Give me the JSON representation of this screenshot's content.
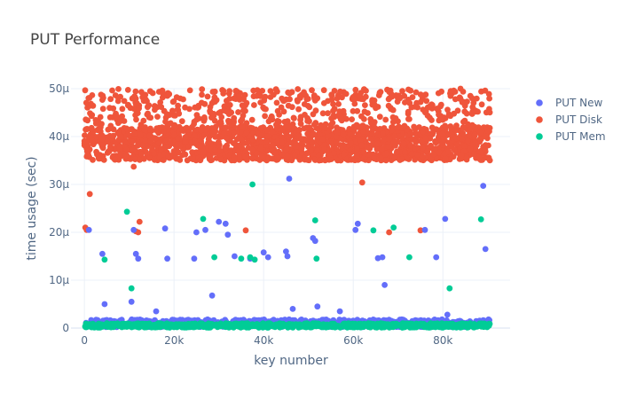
{
  "chart_data": {
    "type": "scatter",
    "title": "PUT Performance",
    "xlabel": "key number",
    "ylabel": "time usage (sec)",
    "xlim": [
      -3000,
      95000
    ],
    "ylim": [
      0,
      5e-05
    ],
    "grid": true,
    "legend_position": "top-right",
    "x_ticks": [
      {
        "value": 0,
        "label": "0"
      },
      {
        "value": 20000,
        "label": "20k"
      },
      {
        "value": 40000,
        "label": "40k"
      },
      {
        "value": 60000,
        "label": "60k"
      },
      {
        "value": 80000,
        "label": "80k"
      }
    ],
    "y_ticks": [
      {
        "value": 0,
        "label": "0"
      },
      {
        "value": 1e-05,
        "label": "10μ"
      },
      {
        "value": 2e-05,
        "label": "20μ"
      },
      {
        "value": 3e-05,
        "label": "30μ"
      },
      {
        "value": 4e-05,
        "label": "40μ"
      },
      {
        "value": 5e-05,
        "label": "50μ"
      }
    ],
    "series": [
      {
        "name": "PUT New",
        "color": "#636efa",
        "bulk": {
          "x_range": [
            0,
            90500
          ],
          "y_range": [
            2e-07,
            1.8e-06
          ],
          "count": 700
        },
        "points": [
          [
            1000,
            2.05e-05
          ],
          [
            4000,
            1.55e-05
          ],
          [
            4500,
            5e-06
          ],
          [
            10500,
            5.5e-06
          ],
          [
            11000,
            2.05e-05
          ],
          [
            11500,
            1.55e-05
          ],
          [
            12000,
            1.45e-05
          ],
          [
            16000,
            3.5e-06
          ],
          [
            18000,
            2.08e-05
          ],
          [
            18500,
            1.45e-05
          ],
          [
            24500,
            1.45e-05
          ],
          [
            25000,
            2e-05
          ],
          [
            27000,
            2.05e-05
          ],
          [
            28500,
            6.8e-06
          ],
          [
            30000,
            2.22e-05
          ],
          [
            31500,
            2.18e-05
          ],
          [
            32000,
            1.95e-05
          ],
          [
            33500,
            1.5e-05
          ],
          [
            37000,
            1.45e-05
          ],
          [
            40000,
            1.58e-05
          ],
          [
            41000,
            1.48e-05
          ],
          [
            45000,
            1.6e-05
          ],
          [
            45300,
            1.5e-05
          ],
          [
            45700,
            3.12e-05
          ],
          [
            46500,
            4e-06
          ],
          [
            51000,
            1.88e-05
          ],
          [
            51500,
            1.82e-05
          ],
          [
            52000,
            4.5e-06
          ],
          [
            57000,
            3.5e-06
          ],
          [
            60500,
            2.05e-05
          ],
          [
            61000,
            2.18e-05
          ],
          [
            65500,
            1.46e-05
          ],
          [
            66500,
            1.48e-05
          ],
          [
            67000,
            9e-06
          ],
          [
            76000,
            2.05e-05
          ],
          [
            78500,
            1.48e-05
          ],
          [
            80500,
            2.28e-05
          ],
          [
            81000,
            2.8e-06
          ],
          [
            89000,
            2.97e-05
          ],
          [
            89500,
            1.65e-05
          ]
        ]
      },
      {
        "name": "PUT Disk",
        "color": "#ef553b",
        "bulk": {
          "x_range": [
            0,
            90500
          ],
          "y_range": [
            3.5e-05,
            4.2e-05
          ],
          "count": 1600
        },
        "scatter": {
          "x_range": [
            0,
            90500
          ],
          "y_range": [
            4.2e-05,
            5e-05
          ],
          "count": 500
        },
        "points": [
          [
            200,
            2.1e-05
          ],
          [
            500,
            2.05e-05
          ],
          [
            1200,
            2.8e-05
          ],
          [
            11000,
            3.37e-05
          ],
          [
            11500,
            2.02e-05
          ],
          [
            12000,
            2e-05
          ],
          [
            12300,
            2.22e-05
          ],
          [
            36000,
            2.04e-05
          ],
          [
            62000,
            3.04e-05
          ],
          [
            68000,
            2e-05
          ],
          [
            75000,
            2.04e-05
          ]
        ]
      },
      {
        "name": "PUT Mem",
        "color": "#00cc96",
        "bulk": {
          "x_range": [
            0,
            90500
          ],
          "y_range": [
            1e-07,
            1e-06
          ],
          "count": 800
        },
        "points": [
          [
            4500,
            1.43e-05
          ],
          [
            9500,
            2.43e-05
          ],
          [
            10500,
            8.3e-06
          ],
          [
            26500,
            2.28e-05
          ],
          [
            29000,
            1.48e-05
          ],
          [
            35000,
            1.45e-05
          ],
          [
            37000,
            1.48e-05
          ],
          [
            37500,
            3e-05
          ],
          [
            38000,
            1.43e-05
          ],
          [
            51500,
            2.25e-05
          ],
          [
            51800,
            1.45e-05
          ],
          [
            64500,
            2.04e-05
          ],
          [
            69000,
            2.1e-05
          ],
          [
            72500,
            1.48e-05
          ],
          [
            81500,
            8.3e-06
          ],
          [
            88500,
            2.27e-05
          ]
        ]
      }
    ]
  }
}
